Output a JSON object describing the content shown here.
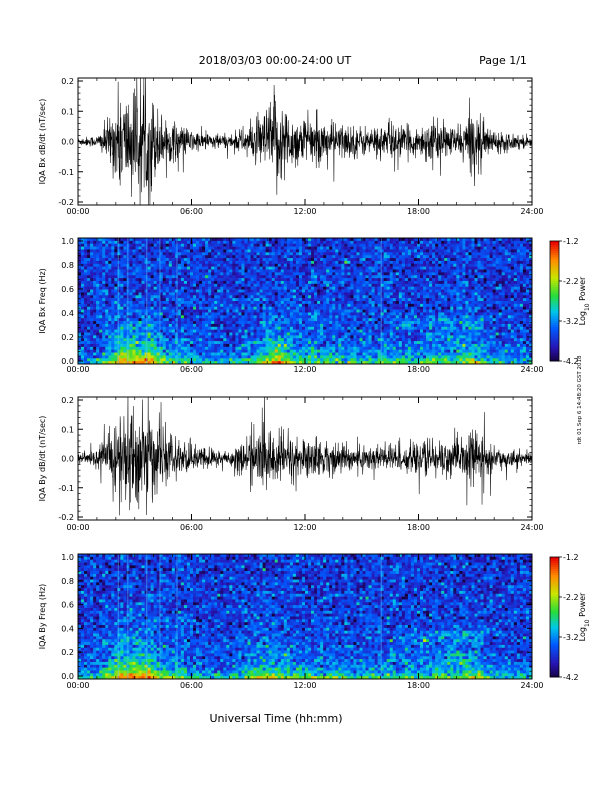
{
  "header": {
    "title": "2018/03/03  00:00-24:00 UT",
    "page": "Page 1/1"
  },
  "side_stamp": "rdt 01 Sep 6 14:48:20 GST 2018",
  "xlabel": "Universal Time (hh:mm)",
  "time_ticks": [
    "00:00",
    "06:00",
    "12:00",
    "18:00",
    "24:00"
  ],
  "colorbar": {
    "label_prefix": "Log",
    "label_sub": "10",
    "label_suffix": " Power",
    "ticks": [
      "-1.2",
      "-2.2",
      "-3.2",
      "-4.2"
    ],
    "range": [
      -4.2,
      -1.2
    ]
  },
  "chart_data": [
    {
      "type": "line",
      "ylabel": "IQA Bx dB/dt (nT/sec)",
      "xlim": [
        0,
        24
      ],
      "ylim": [
        -0.2,
        0.2
      ],
      "yticks": [
        "0.2",
        "0.1",
        "0.0",
        "-0.1",
        "-0.2"
      ],
      "envelope_hours": [
        0,
        1,
        1.8,
        2.2,
        2.6,
        3,
        3.4,
        3.8,
        4.2,
        4.6,
        5.2,
        6,
        7,
        8,
        8.8,
        9.5,
        10,
        10.5,
        11,
        11.5,
        12.5,
        13.5,
        14.5,
        15.5,
        16.5,
        17.5,
        18,
        18.5,
        19,
        19.5,
        20,
        20.5,
        21,
        21.5,
        22,
        23,
        24
      ],
      "envelope_amp": [
        0.015,
        0.02,
        0.1,
        0.19,
        0.17,
        0.2,
        0.16,
        0.2,
        0.12,
        0.08,
        0.07,
        0.04,
        0.03,
        0.025,
        0.05,
        0.08,
        0.12,
        0.19,
        0.12,
        0.09,
        0.08,
        0.07,
        0.06,
        0.05,
        0.07,
        0.05,
        0.05,
        0.08,
        0.07,
        0.06,
        0.05,
        0.08,
        0.13,
        0.06,
        0.04,
        0.03,
        0.02
      ]
    },
    {
      "type": "heatmap",
      "ylabel": "IQA Bx Freq (Hz)",
      "xlim": [
        0,
        24
      ],
      "ylim": [
        0.0,
        1.0
      ],
      "yticks": [
        "1.0",
        "0.8",
        "0.6",
        "0.4",
        "0.2",
        "0.0"
      ],
      "colorscale_range": [
        -4.2,
        -1.2
      ]
    },
    {
      "type": "line",
      "ylabel": "IQA By dB/dt (nT/sec)",
      "xlim": [
        0,
        24
      ],
      "ylim": [
        -0.2,
        0.2
      ],
      "yticks": [
        "0.2",
        "0.1",
        "0.0",
        "-0.1",
        "-0.2"
      ],
      "envelope_hours": [
        0,
        1,
        1.8,
        2.2,
        2.6,
        3,
        3.4,
        3.8,
        4.2,
        4.6,
        5.2,
        6,
        7,
        8,
        8.8,
        9.5,
        10,
        10.5,
        11,
        11.5,
        12.5,
        13.5,
        14.5,
        15.5,
        16.5,
        17.5,
        18,
        18.5,
        19,
        19.5,
        20,
        20.5,
        21,
        21.5,
        22,
        23,
        24
      ],
      "envelope_amp": [
        0.02,
        0.03,
        0.12,
        0.2,
        0.17,
        0.2,
        0.18,
        0.19,
        0.12,
        0.09,
        0.07,
        0.05,
        0.04,
        0.03,
        0.07,
        0.1,
        0.12,
        0.1,
        0.09,
        0.08,
        0.07,
        0.06,
        0.05,
        0.05,
        0.06,
        0.05,
        0.05,
        0.08,
        0.07,
        0.07,
        0.06,
        0.08,
        0.12,
        0.06,
        0.04,
        0.03,
        0.025
      ]
    },
    {
      "type": "heatmap",
      "ylabel": "IQA By Freq (Hz)",
      "xlim": [
        0,
        24
      ],
      "ylim": [
        0.0,
        1.0
      ],
      "yticks": [
        "1.0",
        "0.8",
        "0.6",
        "0.4",
        "0.2",
        "0.0"
      ],
      "colorscale_range": [
        -4.2,
        -1.2
      ]
    }
  ]
}
